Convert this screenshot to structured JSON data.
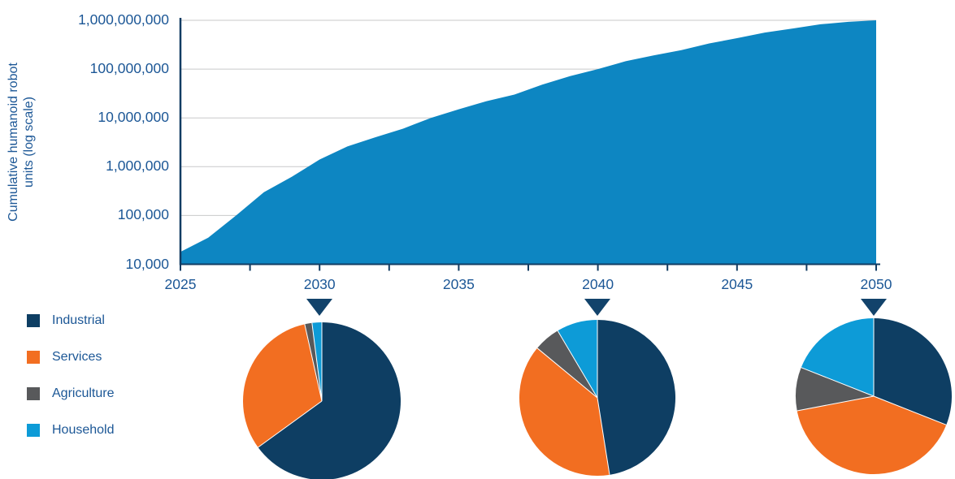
{
  "y_axis_title": {
    "line1": "Cumulative humanoid robot",
    "line2": "units (log scale)"
  },
  "colors": {
    "industrial": "#0E3E63",
    "services": "#F26E21",
    "agriculture": "#58595B",
    "household": "#0D9BD7",
    "area_fill": "#0D86C2",
    "axis": "#123C63",
    "arrow": "#12436B",
    "text": "#1C5796",
    "gridline": "#C8C9CA"
  },
  "legend": {
    "items": [
      {
        "label": "Industrial",
        "key": "industrial"
      },
      {
        "label": "Services",
        "key": "services"
      },
      {
        "label": "Agriculture",
        "key": "agriculture"
      },
      {
        "label": "Household",
        "key": "household"
      }
    ]
  },
  "chart_data": [
    {
      "type": "area",
      "title": "",
      "ylabel": "Cumulative humanoid robot units (log scale)",
      "y_scale": "log",
      "ylim": [
        10000,
        1000000000
      ],
      "y_tick_labels": [
        "10,000",
        "100,000",
        "1,000,000",
        "10,000,000",
        "100,000,000",
        "1,000,000,000"
      ],
      "x_tick_labels": [
        "2025",
        "2030",
        "2035",
        "2040",
        "2045",
        "2050"
      ],
      "x_minor_tick_step_years": 2.5,
      "xlim": [
        2025,
        2050
      ],
      "x": [
        2025,
        2026,
        2027,
        2028,
        2029,
        2030,
        2031,
        2032,
        2033,
        2034,
        2035,
        2036,
        2037,
        2038,
        2039,
        2040,
        2041,
        2042,
        2043,
        2044,
        2045,
        2046,
        2047,
        2048,
        2049,
        2050
      ],
      "values": [
        18000,
        35000,
        100000,
        300000,
        620000,
        1400000,
        2600000,
        4000000,
        6000000,
        10000000,
        15000000,
        22000000,
        30000000,
        48000000,
        72000000,
        100000000,
        145000000,
        190000000,
        245000000,
        335000000,
        430000000,
        560000000,
        680000000,
        830000000,
        930000000,
        1000000000
      ],
      "grid": true,
      "legend_position": "none"
    },
    {
      "type": "pie",
      "anchor_year": "2030",
      "categories": [
        "Industrial",
        "Services",
        "Agriculture",
        "Household"
      ],
      "values": [
        65,
        31.5,
        1.5,
        2
      ],
      "start_angle_deg": 0,
      "direction": "clockwise"
    },
    {
      "type": "pie",
      "anchor_year": "2040",
      "categories": [
        "Industrial",
        "Services",
        "Agriculture",
        "Household"
      ],
      "values": [
        47.5,
        38.5,
        5.5,
        8.5
      ],
      "start_angle_deg": 0,
      "direction": "clockwise"
    },
    {
      "type": "pie",
      "anchor_year": "2050",
      "categories": [
        "Industrial",
        "Services",
        "Agriculture",
        "Household"
      ],
      "values": [
        31,
        41,
        9,
        19
      ],
      "start_angle_deg": 0,
      "direction": "clockwise"
    }
  ],
  "icons": {
    "pie_pointer": "triangle-down"
  }
}
